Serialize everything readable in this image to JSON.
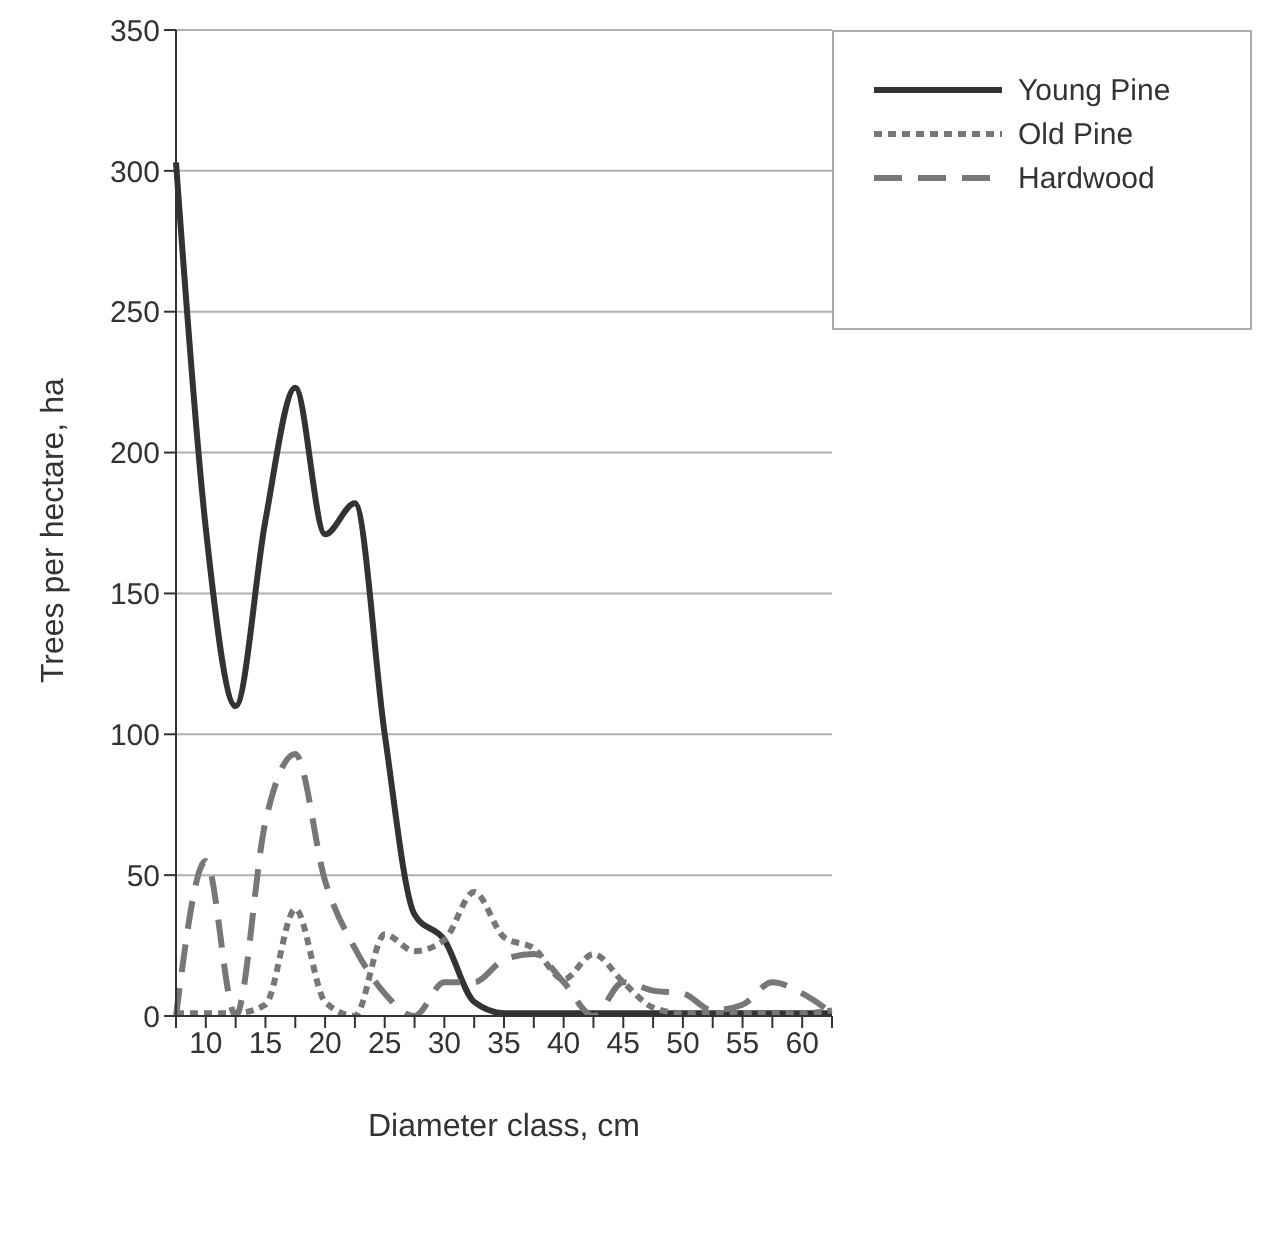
{
  "chart_data": {
    "type": "line",
    "xlabel": "Diameter class, cm",
    "ylabel": "Trees per hectare, ha",
    "categories": [
      null,
      "10",
      null,
      "15",
      null,
      "20",
      null,
      "25",
      null,
      "30",
      null,
      "35",
      null,
      "40",
      null,
      "45",
      null,
      "50",
      null,
      "55",
      null,
      "60",
      null
    ],
    "series": [
      {
        "name": "Young Pine",
        "color": "#333333",
        "line_style": "solid",
        "values": [
          303,
          173,
          110,
          176,
          223,
          171,
          182,
          100,
          36,
          27,
          5,
          1,
          1,
          1,
          1,
          1,
          1,
          1,
          1,
          1,
          1,
          1,
          1
        ]
      },
      {
        "name": "Old Pine",
        "color": "#777777",
        "line_style": "dotted",
        "values": [
          1,
          1,
          1,
          4,
          38,
          5,
          0,
          29,
          23,
          27,
          44,
          28,
          24,
          13,
          22,
          12,
          3,
          1,
          1,
          1,
          1,
          1,
          2
        ]
      },
      {
        "name": "Hardwood",
        "color": "#777777",
        "line_style": "dashed",
        "values": [
          0,
          55,
          0,
          69,
          93,
          48,
          24,
          8,
          0,
          12,
          12,
          20,
          22,
          12,
          0,
          12,
          9,
          8,
          2,
          4,
          12,
          8,
          1
        ]
      }
    ],
    "ylim": [
      0,
      350
    ],
    "yticks": [
      0,
      50,
      100,
      150,
      200,
      250,
      300,
      350
    ],
    "grid": "y",
    "legend": "top right",
    "marker": "none"
  }
}
